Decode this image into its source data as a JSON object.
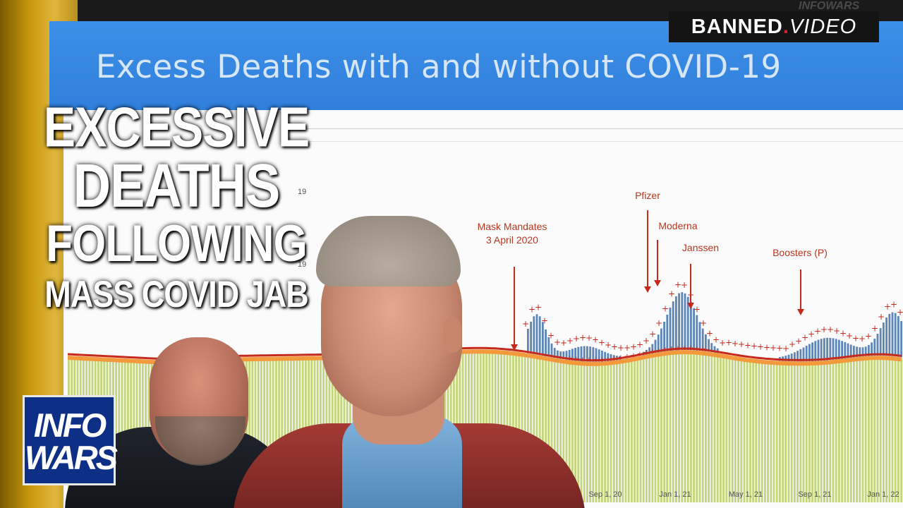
{
  "slide": {
    "title": "Excess Deaths with and without COVID-19"
  },
  "badge": {
    "brand": "BANNED",
    "dot": ".",
    "suffix": "VIDEO"
  },
  "corner_mark": "INFOWARS",
  "headline": {
    "line1": "EXCESSIVE",
    "line2": "DEATHS",
    "line3": "FOLLOWING",
    "line4": "MASS COVID JAB"
  },
  "logo": {
    "line1": "INFO",
    "line2": "WARS"
  },
  "chart_data": {
    "type": "bar",
    "title": "Excess Deaths with and without COVID-19",
    "x_tick_labels": [
      "Sep 1, 20",
      "Jan 1, 21",
      "May 1, 21",
      "Sep 1, 21",
      "Jan 1, 22"
    ],
    "partial_y_tick_labels": [
      "19",
      "19"
    ],
    "annotations": [
      {
        "label": "Mask Mandates",
        "sublabel": "3 April 2020"
      },
      {
        "label": "Pfizer"
      },
      {
        "label": "Moderna"
      },
      {
        "label": "Janssen"
      },
      {
        "label": "Boosters (P)"
      }
    ],
    "colors": {
      "baseline_bars": "#c3d67a",
      "covid_bars": "#5d86b8",
      "expected_line": "#c62a1c",
      "threshold_band": "#f29a3c",
      "marker": "#c62a1c"
    }
  }
}
